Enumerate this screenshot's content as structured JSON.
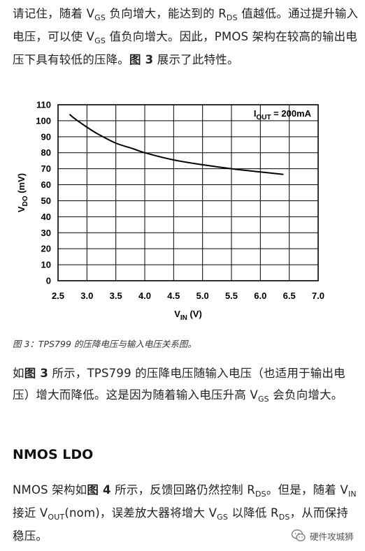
{
  "p1": {
    "a": "请记住，随着 V",
    "a_sub": "GS",
    "b": " 负向增大，能达到的 R",
    "b_sub": "DS",
    "c": " 值越低。通过提升输入电压，可以使 V",
    "c_sub": "GS",
    "d": " 值负向增大。因此，PMOS 架构在较高的输出电压下具有较低的压降。",
    "bold": "图 3",
    "e": " 展示了此特性。"
  },
  "chart_data": {
    "type": "line",
    "x": [
      2.7,
      2.8,
      3.0,
      3.2,
      3.5,
      3.8,
      4.0,
      4.5,
      5.0,
      5.5,
      6.0,
      6.4
    ],
    "series": [
      {
        "values": [
          104,
          101,
          96,
          91.5,
          86,
          82.5,
          80,
          75.5,
          72.5,
          70,
          68,
          66.5
        ]
      }
    ],
    "xlim": [
      2.5,
      7.0
    ],
    "ylim": [
      0,
      110
    ],
    "xticks": [
      "2.5",
      "3.0",
      "3.5",
      "4.0",
      "4.5",
      "5.0",
      "5.5",
      "6.0",
      "6.5",
      "7.0"
    ],
    "yticks": [
      "0",
      "10",
      "20",
      "30",
      "40",
      "50",
      "60",
      "70",
      "80",
      "90",
      "100",
      "110"
    ],
    "xlabel": "V",
    "xlabel_sub": "IN",
    "xlabel_unit": " (V)",
    "ylabel": "V",
    "ylabel_sub": "DO",
    "ylabel_unit": " (mV)",
    "annotation": "I",
    "annotation_sub": "OUT",
    "annotation_rest": " = 200mA",
    "grid": true
  },
  "caption": "图 3：TPS799 的压降电压与输入电压关系图。",
  "p2": {
    "a": "如",
    "bold": "图 3",
    "b": " 所示，TPS799 的压降电压随输入电压（也适用于输出电压）增大而降低。这是因为随着输入电压升高 V",
    "b_sub": "GS",
    "c": " 会负向增大。"
  },
  "heading": "NMOS LDO",
  "p3": {
    "a": "NMOS 架构如",
    "bold": "图 4",
    "b": " 所示，反馈回路仍然控制 R",
    "b_sub": "DS",
    "c": "。但是，随着 V",
    "c_sub": "IN",
    "d": " 接近 V",
    "d_sub": "OUT",
    "e": "(nom)，误差放大器将增大 V",
    "e_sub": "GS",
    "f": " 以降低 R",
    "f_sub": "DS",
    "g": "，从而保持稳压。"
  },
  "watermark": "硬件攻城狮",
  "colors": {
    "text": "#222222",
    "curve": "#000000",
    "grid": "#000000"
  }
}
